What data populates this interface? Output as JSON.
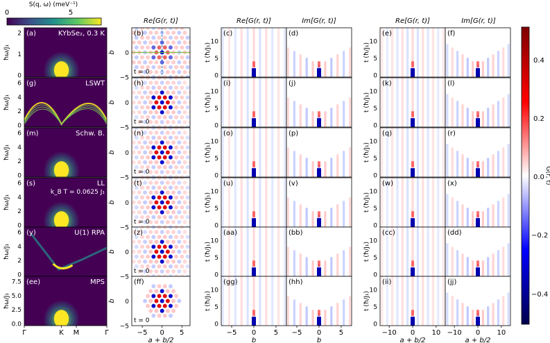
{
  "chart_data": {
    "type": "heatmap",
    "colorbar_top": {
      "label": "S(q, ω) (meV⁻¹)",
      "colormap": "viridis",
      "ticks": [
        "0",
        "5"
      ],
      "range": [
        0,
        7.5
      ]
    },
    "colorbar_right": {
      "label": "G(r, t)",
      "colormap": "seismic",
      "ticks": [
        "0.4",
        "0.2",
        "0.0",
        "−0.2",
        "−0.4"
      ],
      "range": [
        -0.5,
        0.5
      ]
    },
    "column_titles": [
      "Re[G(r, t)]",
      "Re[G(r, t)]",
      "Im[G(r, t)]",
      "Re[G(r, t)]",
      "Im[G(r, t)]"
    ],
    "spectrum_column": {
      "ylabel": "ħω/J₁",
      "yticks_top": [
        "0",
        "1",
        "2"
      ],
      "yticks": [
        "0",
        "2",
        "4",
        "6"
      ],
      "yticks_bottom": [
        "0.0",
        "2.5",
        "5.0",
        "7.5"
      ],
      "xticks": [
        "Γ",
        "K",
        "M",
        "Γ"
      ]
    },
    "real_space_column": {
      "ylabel": "b",
      "yticks": [
        "0",
        "−5"
      ],
      "xlabel": "a + b/2",
      "xticks": [
        "−5",
        "0",
        "5"
      ],
      "time_label": "t = 0"
    },
    "time_axes": {
      "ylabel": "t (ħ/J₁)",
      "yticks": [
        "0",
        "5",
        "10"
      ],
      "xlabel_b": "b",
      "xticks_b": [
        "−5",
        "0",
        "5"
      ],
      "xlabel_ab": "a + b/2",
      "xticks_ab": [
        "−10",
        "0",
        "10"
      ]
    },
    "rows": [
      {
        "method": "KYbSe₂, 0.3 K",
        "panels": [
          "(a)",
          "(b)",
          "(c)",
          "(d)",
          "(e)",
          "(f)"
        ]
      },
      {
        "method": "LSWT",
        "panels": [
          "(g)",
          "(h)",
          "(i)",
          "(j)",
          "(k)",
          "(l)"
        ]
      },
      {
        "method": "Schw. B.",
        "panels": [
          "(m)",
          "(n)",
          "(o)",
          "(p)",
          "(q)",
          "(r)"
        ]
      },
      {
        "method": "LL",
        "method2": "k_B T = 0.0625 J₁",
        "panels": [
          "(s)",
          "(t)",
          "(u)",
          "(v)",
          "(w)",
          "(x)"
        ]
      },
      {
        "method": "U(1) RPA",
        "panels": [
          "(y)",
          "(z)",
          "(aa)",
          "(bb)",
          "(cc)",
          "(dd)"
        ]
      },
      {
        "method": "MPS",
        "panels": [
          "(ee)",
          "(ff)",
          "(gg)",
          "(hh)",
          "(ii)",
          "(jj)"
        ]
      }
    ]
  }
}
